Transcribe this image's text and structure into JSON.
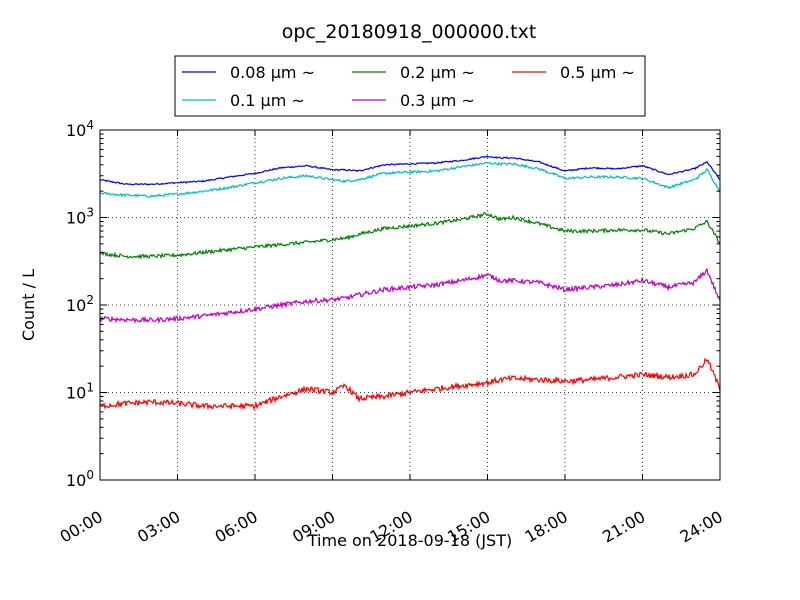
{
  "chart_data": {
    "type": "line",
    "title": "opc_20180918_000000.txt",
    "xlabel": "Time on 2018-09-18 (JST)",
    "ylabel": "Count / L",
    "x_ticks": [
      "00:00",
      "03:00",
      "06:00",
      "09:00",
      "12:00",
      "15:00",
      "18:00",
      "21:00",
      "24:00"
    ],
    "y_ticks": [
      {
        "base": "10",
        "exp": "0"
      },
      {
        "base": "10",
        "exp": "1"
      },
      {
        "base": "10",
        "exp": "2"
      },
      {
        "base": "10",
        "exp": "3"
      },
      {
        "base": "10",
        "exp": "4"
      }
    ],
    "xlim_hours": [
      0,
      24
    ],
    "ylim": [
      1,
      10000
    ],
    "yscale": "log",
    "grid": true,
    "legend_position": "top-center",
    "x_hours": [
      0,
      1,
      2,
      3,
      4,
      5,
      6,
      7,
      8,
      9,
      9.5,
      10,
      11,
      12,
      13,
      14,
      15,
      15.5,
      16,
      17,
      18,
      19,
      20,
      21,
      22,
      23,
      23.5,
      24
    ],
    "series": [
      {
        "name": "0.08 μm ~",
        "color": "#0000ff",
        "values": [
          2700,
          2400,
          2400,
          2500,
          2600,
          2900,
          3200,
          3700,
          3900,
          3500,
          3500,
          3400,
          4000,
          4100,
          4200,
          4500,
          5000,
          4800,
          4800,
          4300,
          3400,
          3700,
          3600,
          3900,
          3100,
          3600,
          4300,
          2700
        ]
      },
      {
        "name": "0.1 μm ~",
        "color": "#00bfbf",
        "values": [
          1900,
          1800,
          1750,
          1850,
          2000,
          2200,
          2500,
          2800,
          3000,
          2700,
          2600,
          2700,
          3200,
          3300,
          3400,
          3800,
          4200,
          4100,
          4100,
          3600,
          2800,
          2900,
          2900,
          2800,
          2200,
          2700,
          3500,
          2000
        ]
      },
      {
        "name": "0.2 μm ~",
        "color": "#008000",
        "values": [
          390,
          360,
          360,
          370,
          400,
          430,
          460,
          490,
          520,
          560,
          580,
          640,
          750,
          800,
          860,
          950,
          1100,
          950,
          1000,
          850,
          700,
          700,
          720,
          720,
          650,
          750,
          900,
          500
        ]
      },
      {
        "name": "0.3 μm ~",
        "color": "#bf00bf",
        "values": [
          70,
          68,
          67,
          70,
          75,
          82,
          90,
          100,
          110,
          115,
          120,
          130,
          150,
          160,
          170,
          190,
          220,
          190,
          190,
          180,
          150,
          160,
          170,
          190,
          160,
          180,
          250,
          110
        ]
      },
      {
        "name": "0.5 μm ~",
        "color": "#ff0000",
        "values": [
          7,
          7.5,
          7.8,
          7.5,
          7,
          7,
          7,
          9,
          11,
          10,
          12,
          8.5,
          9,
          10,
          11,
          12,
          13,
          14,
          14.5,
          14,
          13.5,
          14,
          15,
          16,
          15,
          16,
          24,
          11
        ]
      }
    ]
  }
}
